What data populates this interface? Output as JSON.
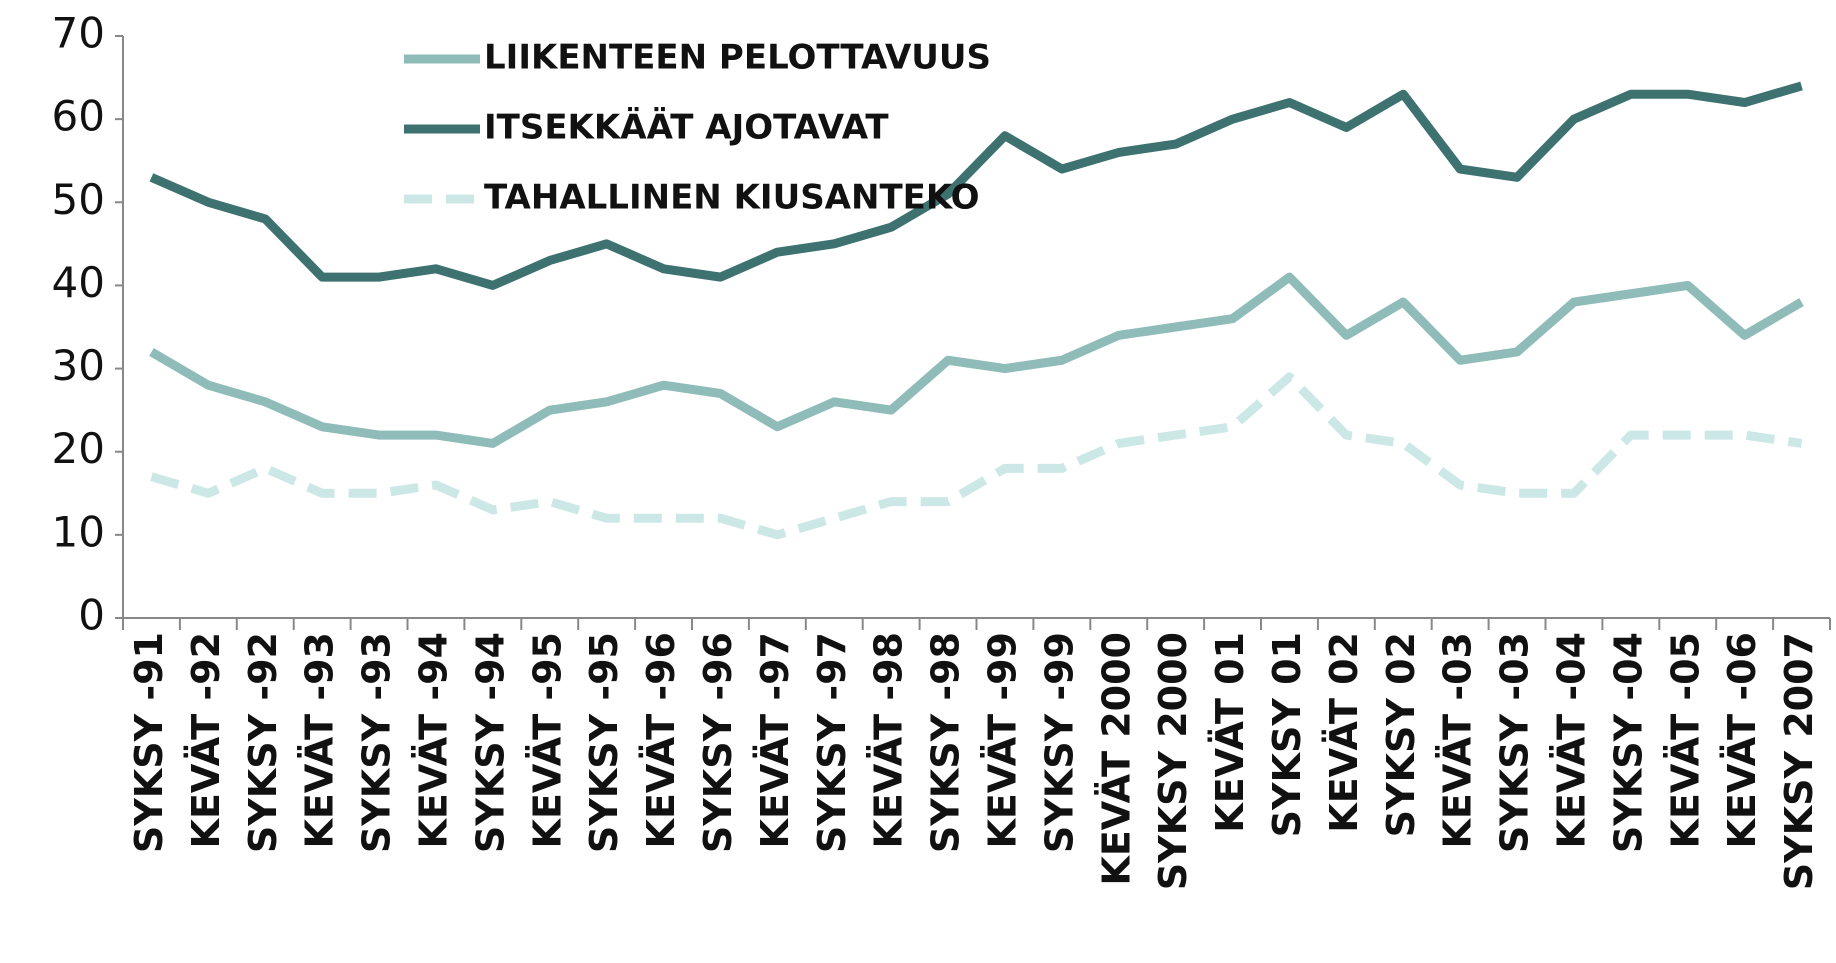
{
  "chart_data": {
    "type": "line",
    "categories": [
      "SYKSY -91",
      "KEVÄT -92",
      "SYKSY -92",
      "KEVÄT -93",
      "SYKSY -93",
      "KEVÄT -94",
      "SYKSY -94",
      "KEVÄT -95",
      "SYKSY -95",
      "KEVÄT -96",
      "SYKSY -96",
      "KEVÄT -97",
      "SYKSY -97",
      "KEVÄT -98",
      "SYKSY -98",
      "KEVÄT -99",
      "SYKSY -99",
      "KEVÄT 2000",
      "SYKSY 2000",
      "KEVÄT 01",
      "SYKSY 01",
      "KEVÄT 02",
      "SYKSY 02",
      "KEVÄT -03",
      "SYKSY -03",
      "KEVÄT -04",
      "SYKSY -04",
      "KEVÄT -05",
      "KEVÄT -06",
      "SYKSY 2007"
    ],
    "series": [
      {
        "name": "LIIKENTEEN PELOTTAVUUS",
        "color": "#8fbcb9",
        "dashed": false,
        "values": [
          32,
          28,
          26,
          23,
          22,
          22,
          21,
          25,
          26,
          28,
          27,
          23,
          26,
          25,
          31,
          30,
          31,
          34,
          35,
          36,
          41,
          34,
          38,
          31,
          32,
          38,
          39,
          40,
          34,
          38
        ]
      },
      {
        "name": "ITSEKKÄÄT AJOTAVAT",
        "color": "#3d7270",
        "dashed": false,
        "values": [
          53,
          50,
          48,
          41,
          41,
          42,
          40,
          43,
          45,
          42,
          41,
          44,
          45,
          47,
          51,
          58,
          54,
          56,
          57,
          60,
          62,
          59,
          63,
          54,
          53,
          60,
          63,
          63,
          62,
          64
        ]
      },
      {
        "name": "TAHALLINEN KIUSANTEKO",
        "color": "#cce8e6",
        "dashed": true,
        "values": [
          17,
          15,
          18,
          15,
          15,
          16,
          13,
          14,
          12,
          12,
          12,
          10,
          12,
          14,
          14,
          18,
          18,
          21,
          22,
          23,
          29,
          22,
          21,
          16,
          15,
          15,
          22,
          22,
          22,
          21
        ]
      }
    ],
    "ylim": [
      0,
      70
    ],
    "yticks": [
      0,
      10,
      20,
      30,
      40,
      50,
      60,
      70
    ]
  }
}
